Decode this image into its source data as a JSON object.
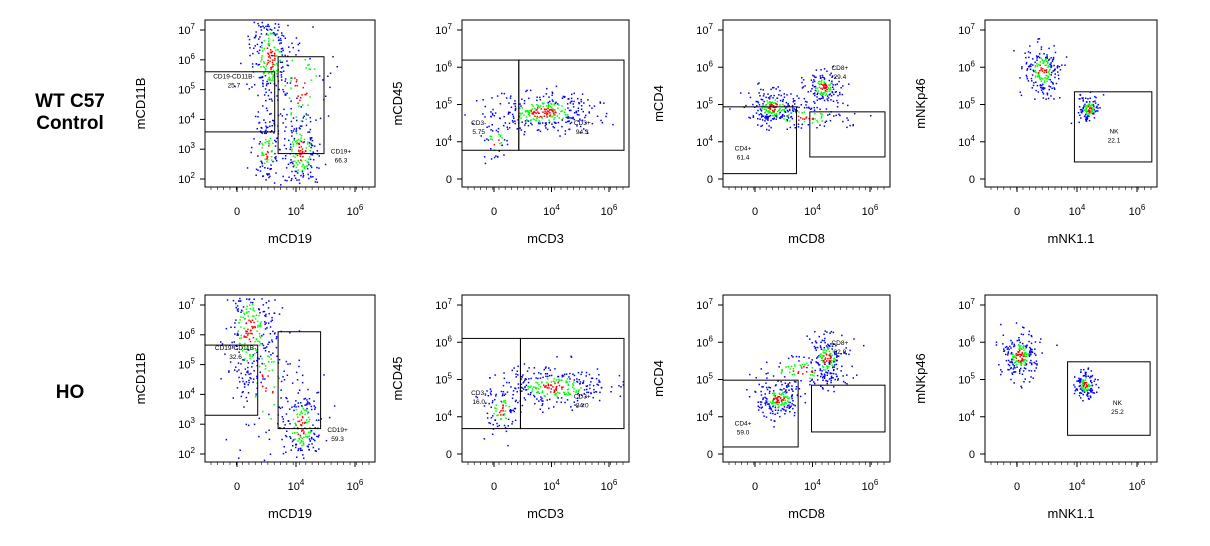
{
  "row_labels": [
    {
      "lines": [
        "WT C57",
        "Control"
      ]
    },
    {
      "lines": [
        "HO"
      ]
    }
  ],
  "colors": {
    "low": "#0000ff",
    "mid": "#00ff00",
    "high": "#ff0000",
    "frame": "#000000"
  },
  "chart_data": [
    {
      "type": "scatter",
      "row": "WT C57 Control",
      "xlabel": "mCD19",
      "ylabel": "mCD11B",
      "x_ticks": [
        "0",
        "10^4",
        "10^6"
      ],
      "y_ticks": [
        "10^2",
        "10^3",
        "10^4",
        "10^5",
        "10^6",
        "10^7"
      ],
      "gates": [
        {
          "label": "CD19-CD11B-",
          "value": "25.7"
        },
        {
          "label": "CD19+",
          "value": "66.3"
        }
      ]
    },
    {
      "type": "scatter",
      "row": "WT C57 Control",
      "xlabel": "mCD3",
      "ylabel": "mCD45",
      "x_ticks": [
        "0",
        "10^4",
        "10^6"
      ],
      "y_ticks": [
        "0",
        "10^4",
        "10^5",
        "10^6",
        "10^7"
      ],
      "gates": [
        {
          "label": "CD3-",
          "value": "5.75"
        },
        {
          "label": "CD3+",
          "value": "94.3"
        }
      ]
    },
    {
      "type": "scatter",
      "row": "WT C57 Control",
      "xlabel": "mCD8",
      "ylabel": "mCD4",
      "x_ticks": [
        "0",
        "10^4",
        "10^6"
      ],
      "y_ticks": [
        "0",
        "10^4",
        "10^5",
        "10^6",
        "10^7"
      ],
      "gates": [
        {
          "label": "CD4+",
          "value": "61.4"
        },
        {
          "label": "CD8+",
          "value": "29.4"
        }
      ]
    },
    {
      "type": "scatter",
      "row": "WT C57 Control",
      "xlabel": "mNK1.1",
      "ylabel": "mNKp46",
      "x_ticks": [
        "0",
        "10^4",
        "10^6"
      ],
      "y_ticks": [
        "0",
        "10^4",
        "10^5",
        "10^6",
        "10^7"
      ],
      "gates": [
        {
          "label": "NK",
          "value": "22.1"
        }
      ]
    },
    {
      "type": "scatter",
      "row": "HO",
      "xlabel": "mCD19",
      "ylabel": "mCD11B",
      "x_ticks": [
        "0",
        "10^4",
        "10^6"
      ],
      "y_ticks": [
        "10^2",
        "10^3",
        "10^4",
        "10^5",
        "10^6",
        "10^7"
      ],
      "gates": [
        {
          "label": "CD19-CD11B-",
          "value": "32.6"
        },
        {
          "label": "CD19+",
          "value": "59.3"
        }
      ]
    },
    {
      "type": "scatter",
      "row": "HO",
      "xlabel": "mCD3",
      "ylabel": "mCD45",
      "x_ticks": [
        "0",
        "10^4",
        "10^6"
      ],
      "y_ticks": [
        "0",
        "10^4",
        "10^5",
        "10^6",
        "10^7"
      ],
      "gates": [
        {
          "label": "CD3-",
          "value": "16.0"
        },
        {
          "label": "CD3+",
          "value": "84.0"
        }
      ]
    },
    {
      "type": "scatter",
      "row": "HO",
      "xlabel": "mCD8",
      "ylabel": "mCD4",
      "x_ticks": [
        "0",
        "10^4",
        "10^6"
      ],
      "y_ticks": [
        "0",
        "10^4",
        "10^5",
        "10^6",
        "10^7"
      ],
      "gates": [
        {
          "label": "CD4+",
          "value": "59.0"
        },
        {
          "label": "CD8+",
          "value": "32.9"
        }
      ]
    },
    {
      "type": "scatter",
      "row": "HO",
      "xlabel": "mNK1.1",
      "ylabel": "mNKp46",
      "x_ticks": [
        "0",
        "10^4",
        "10^6"
      ],
      "y_ticks": [
        "0",
        "10^4",
        "10^5",
        "10^6",
        "10^7"
      ],
      "gates": [
        {
          "label": "NK",
          "value": "25.2"
        }
      ]
    }
  ]
}
